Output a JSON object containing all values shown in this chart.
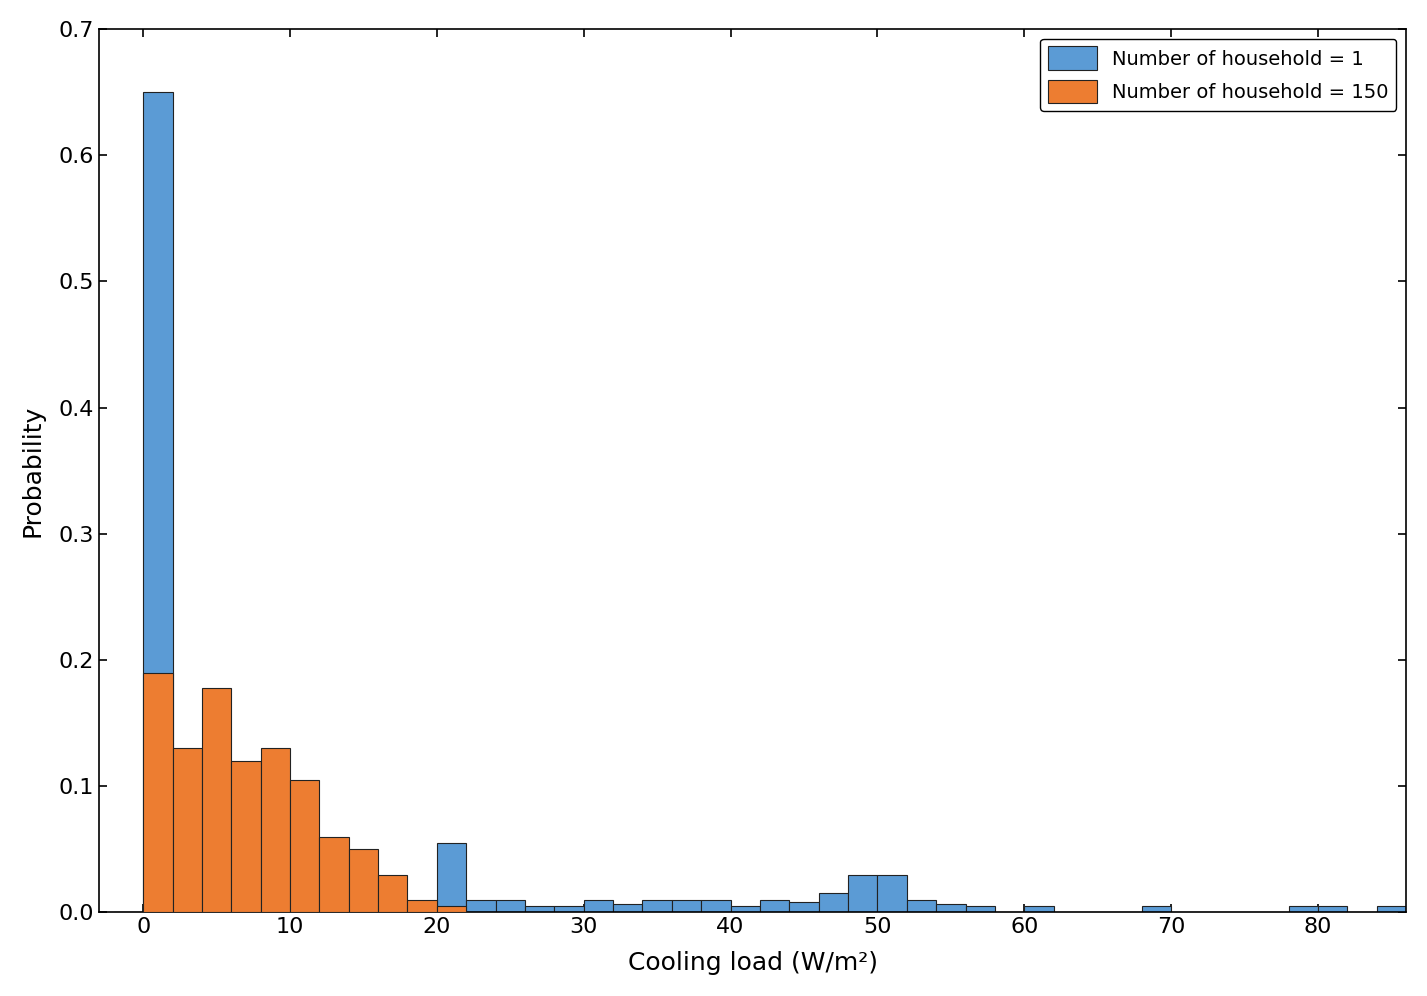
{
  "xlabel": "Cooling load (W/m²)",
  "ylabel": "Probability",
  "xlim": [
    -3,
    86
  ],
  "ylim": [
    0,
    0.7
  ],
  "yticks": [
    0,
    0.1,
    0.2,
    0.3,
    0.4,
    0.5,
    0.6,
    0.7
  ],
  "xticks": [
    0,
    10,
    20,
    30,
    40,
    50,
    60,
    70,
    80
  ],
  "bin_width": 2,
  "blue_color": "#5B9BD5",
  "orange_color": "#ED7D31",
  "legend_label_1": "Number of household = 1",
  "legend_label_2": "Number of household = 150",
  "blue_bins": [
    -2,
    0,
    2,
    4,
    6,
    8,
    10,
    12,
    14,
    16,
    18,
    20,
    22,
    24,
    26,
    28,
    30,
    32,
    34,
    36,
    38,
    40,
    42,
    44,
    46,
    48,
    50,
    52,
    54,
    56,
    58,
    60,
    62,
    64,
    66,
    68,
    70,
    72,
    74,
    76,
    78,
    80,
    82,
    84
  ],
  "blue_vals": [
    0.0,
    0.65,
    0.02,
    0.005,
    0.005,
    0.005,
    0.005,
    0.005,
    0.005,
    0.005,
    0.005,
    0.055,
    0.01,
    0.01,
    0.005,
    0.005,
    0.01,
    0.007,
    0.01,
    0.01,
    0.01,
    0.005,
    0.01,
    0.008,
    0.015,
    0.03,
    0.03,
    0.01,
    0.007,
    0.005,
    0.0,
    0.005,
    0.0,
    0.0,
    0.0,
    0.005,
    0.0,
    0.0,
    0.0,
    0.0,
    0.005,
    0.005,
    0.0,
    0.005
  ],
  "orange_bins": [
    -2,
    0,
    2,
    4,
    6,
    8,
    10,
    12,
    14,
    16,
    18,
    20
  ],
  "orange_vals": [
    0.0,
    0.19,
    0.13,
    0.178,
    0.12,
    0.13,
    0.105,
    0.06,
    0.05,
    0.03,
    0.01,
    0.005
  ]
}
